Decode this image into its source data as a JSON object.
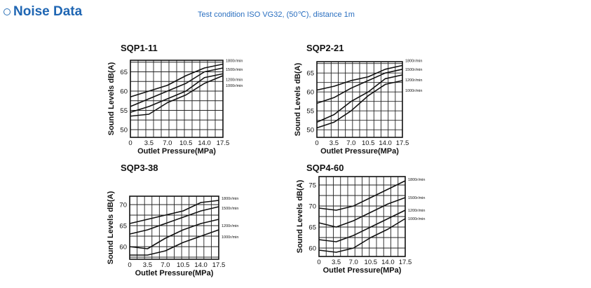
{
  "header": {
    "title": "Noise Data",
    "condition": "Test condition ISO VG32, (50℃), distance 1m",
    "bullet_icon": "circle-bullet-icon",
    "accent_color": "#1f66b3"
  },
  "chart_data": [
    {
      "type": "line",
      "title": "SQP1-11",
      "xlabel": "Outlet Pressure(MPa)",
      "ylabel": "Sound Levels dB(A)",
      "x": [
        0,
        3.5,
        7.0,
        10.5,
        14.0,
        17.5
      ],
      "x_ticks": [
        "0",
        "3.5",
        "7.0",
        "10.5",
        "14.0",
        "17.5"
      ],
      "y_ticks": [
        50,
        55,
        60,
        65
      ],
      "ylim": [
        48,
        68
      ],
      "grid": true,
      "series": [
        {
          "name": "1800r/min",
          "values": [
            58.5,
            60,
            61.5,
            64,
            66,
            67
          ]
        },
        {
          "name": "1500r/min",
          "values": [
            56,
            58,
            60,
            62,
            65,
            66
          ]
        },
        {
          "name": "1200r/min",
          "values": [
            54.5,
            56,
            58,
            60,
            63.5,
            64.5
          ]
        },
        {
          "name": "1000r/min",
          "values": [
            53.5,
            54,
            57,
            59,
            62,
            64
          ]
        }
      ]
    },
    {
      "type": "line",
      "title": "SQP2-21",
      "xlabel": "Outlet Pressure(MPa)",
      "ylabel": "Sound Levels dB(A)",
      "x": [
        0,
        3.5,
        7.0,
        10.5,
        14.0,
        17.5
      ],
      "x_ticks": [
        "0",
        "3.5",
        "7.0",
        "10.5",
        "14.0",
        "17.5"
      ],
      "y_ticks": [
        50,
        55,
        60,
        65
      ],
      "ylim": [
        48,
        68
      ],
      "grid": true,
      "series": [
        {
          "name": "1800r/min",
          "values": [
            60.5,
            61.5,
            63,
            64,
            66,
            67
          ]
        },
        {
          "name": "1500r/min",
          "values": [
            57,
            58.5,
            61,
            63,
            65,
            66
          ]
        },
        {
          "name": "1200r/min",
          "values": [
            52,
            54,
            57.5,
            60,
            63.5,
            64.5
          ]
        },
        {
          "name": "1000r/min",
          "values": [
            50.5,
            52,
            55,
            59,
            62,
            63
          ]
        }
      ]
    },
    {
      "type": "line",
      "title": "SQP3-38",
      "xlabel": "Outlet Pressure(MPa)",
      "ylabel": "Sound Levels dB(A)",
      "x": [
        0,
        3.5,
        7.0,
        10.5,
        14.0,
        17.5
      ],
      "x_ticks": [
        "0",
        "3.5",
        "7.0",
        "10.5",
        "14.0",
        "17.5"
      ],
      "y_ticks": [
        60,
        65,
        70
      ],
      "ylim": [
        57,
        72
      ],
      "grid": true,
      "series": [
        {
          "name": "1800r/min",
          "values": [
            65.5,
            66.5,
            67.5,
            68.5,
            70.5,
            71
          ]
        },
        {
          "name": "1500r/min",
          "values": [
            63,
            64,
            65.5,
            67,
            68.5,
            69.5
          ]
        },
        {
          "name": "1200r/min",
          "values": [
            60,
            59.5,
            62,
            64,
            65.5,
            66.5
          ]
        },
        {
          "name": "1000r/min",
          "values": [
            58,
            58,
            59,
            61,
            62.5,
            64
          ]
        }
      ]
    },
    {
      "type": "line",
      "title": "SQP4-60",
      "xlabel": "Outlet Pressure(MPa)",
      "ylabel": "Sound Levels dB(A)",
      "x": [
        0,
        3.5,
        7.0,
        10.5,
        14.0,
        17.5
      ],
      "x_ticks": [
        "0",
        "3.5",
        "7.0",
        "10.5",
        "14.0",
        "17.5"
      ],
      "y_ticks": [
        60,
        65,
        70,
        75
      ],
      "ylim": [
        58,
        77
      ],
      "grid": true,
      "series": [
        {
          "name": "1800r/min",
          "values": [
            69.5,
            69,
            70,
            72,
            74,
            76
          ]
        },
        {
          "name": "1500r/min",
          "values": [
            66,
            65,
            66.5,
            68.5,
            70.5,
            72
          ]
        },
        {
          "name": "1200r/min",
          "values": [
            62,
            61.5,
            63,
            65,
            67,
            69
          ]
        },
        {
          "name": "1000r/min",
          "values": [
            59.5,
            59,
            60,
            62.5,
            64.5,
            67
          ]
        }
      ]
    }
  ]
}
